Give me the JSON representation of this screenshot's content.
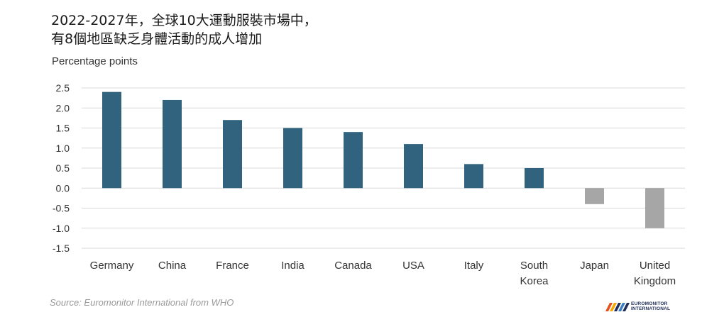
{
  "title_lines": [
    "2022-2027年，全球10大運動服裝市場中，",
    "有8個地區缺乏身體活動的成人增加"
  ],
  "source": "Source: Euromonitor International from WHO",
  "logo": {
    "line1": "EUROMONITOR",
    "line2": "INTERNATIONAL"
  },
  "chart_data": {
    "type": "bar",
    "ylabel": "Percentage points",
    "categories": [
      [
        "Germany"
      ],
      [
        "China"
      ],
      [
        "France"
      ],
      [
        "India"
      ],
      [
        "Canada"
      ],
      [
        "USA"
      ],
      [
        "Italy"
      ],
      [
        "South",
        "Korea"
      ],
      [
        "Japan"
      ],
      [
        "United",
        "Kingdom"
      ]
    ],
    "values": [
      2.4,
      2.2,
      1.7,
      1.5,
      1.4,
      1.1,
      0.6,
      0.5,
      -0.4,
      -1.0
    ],
    "ylim": [
      -1.5,
      2.5
    ],
    "yticks": [
      "2.5",
      "2.0",
      "1.5",
      "1.0",
      "0.5",
      "0.0",
      "-0.5",
      "-1.0",
      "-1.5"
    ],
    "ytick_values": [
      2.5,
      2.0,
      1.5,
      1.0,
      0.5,
      0.0,
      -0.5,
      -1.0,
      -1.5
    ],
    "grid": true,
    "colors": {
      "positive": "#31637f",
      "negative": "#a6a6a6",
      "grid": "#d9d9d9"
    }
  }
}
